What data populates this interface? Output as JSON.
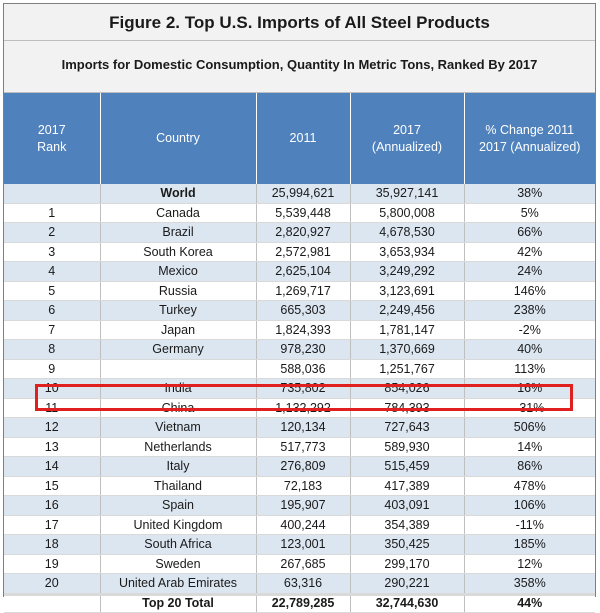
{
  "title": "Figure 2. Top U.S. Imports of All Steel Products",
  "subtitle": "Imports for Domestic Consumption, Quantity In Metric Tons, Ranked By 2017",
  "colors": {
    "header_bg": "#4f81bd",
    "band_bg": "#dce6f1",
    "highlight": "#e0201e"
  },
  "chart_data": {
    "type": "table",
    "title": "Figure 2. Top U.S. Imports of All Steel Products",
    "subtitle": "Imports for Domestic Consumption, Quantity In Metric Tons, Ranked By 2017",
    "columns": [
      {
        "line1": "2017",
        "line2": "Rank"
      },
      {
        "line1": "Country",
        "line2": ""
      },
      {
        "line1": "2011",
        "line2": ""
      },
      {
        "line1": "2017",
        "line2": "(Annualized)"
      },
      {
        "line1": "% Change 2011",
        "line2": "2017 (Annualized)"
      }
    ],
    "world": {
      "rank": "",
      "country": "World",
      "y2011": "25,994,621",
      "y2017": "35,927,141",
      "change": "38%"
    },
    "rows": [
      {
        "rank": "1",
        "country": "Canada",
        "y2011": "5,539,448",
        "y2017": "5,800,008",
        "change": "5%"
      },
      {
        "rank": "2",
        "country": "Brazil",
        "y2011": "2,820,927",
        "y2017": "4,678,530",
        "change": "66%"
      },
      {
        "rank": "3",
        "country": "South Korea",
        "y2011": "2,572,981",
        "y2017": "3,653,934",
        "change": "42%"
      },
      {
        "rank": "4",
        "country": "Mexico",
        "y2011": "2,625,104",
        "y2017": "3,249,292",
        "change": "24%"
      },
      {
        "rank": "5",
        "country": "Russia",
        "y2011": "1,269,717",
        "y2017": "3,123,691",
        "change": "146%"
      },
      {
        "rank": "6",
        "country": "Turkey",
        "y2011": "665,303",
        "y2017": "2,249,456",
        "change": "238%"
      },
      {
        "rank": "7",
        "country": "Japan",
        "y2011": "1,824,393",
        "y2017": "1,781,147",
        "change": "-2%"
      },
      {
        "rank": "8",
        "country": "Germany",
        "y2011": "978,230",
        "y2017": "1,370,669",
        "change": "40%"
      },
      {
        "rank": "9",
        "country": "",
        "y2011": "588,036",
        "y2017": "1,251,767",
        "change": "113%"
      },
      {
        "rank": "10",
        "country": "India",
        "y2011": "735,802",
        "y2017": "854,026",
        "change": "16%"
      },
      {
        "rank": "11",
        "country": "China",
        "y2011": "1,132,292",
        "y2017": "784,393",
        "change": "-31%",
        "highlighted": true
      },
      {
        "rank": "12",
        "country": "Vietnam",
        "y2011": "120,134",
        "y2017": "727,643",
        "change": "506%"
      },
      {
        "rank": "13",
        "country": "Netherlands",
        "y2011": "517,773",
        "y2017": "589,930",
        "change": "14%"
      },
      {
        "rank": "14",
        "country": "Italy",
        "y2011": "276,809",
        "y2017": "515,459",
        "change": "86%"
      },
      {
        "rank": "15",
        "country": "Thailand",
        "y2011": "72,183",
        "y2017": "417,389",
        "change": "478%"
      },
      {
        "rank": "16",
        "country": "Spain",
        "y2011": "195,907",
        "y2017": "403,091",
        "change": "106%"
      },
      {
        "rank": "17",
        "country": "United Kingdom",
        "y2011": "400,244",
        "y2017": "354,389",
        "change": "-11%"
      },
      {
        "rank": "18",
        "country": "South Africa",
        "y2011": "123,001",
        "y2017": "350,425",
        "change": "185%"
      },
      {
        "rank": "19",
        "country": "Sweden",
        "y2011": "267,685",
        "y2017": "299,170",
        "change": "12%"
      },
      {
        "rank": "20",
        "country": "United Arab Emirates",
        "y2011": "63,316",
        "y2017": "290,221",
        "change": "358%"
      }
    ],
    "total": {
      "label": "Top 20 Total",
      "y2011": "22,789,285",
      "y2017": "32,744,630",
      "change": "44%"
    }
  }
}
